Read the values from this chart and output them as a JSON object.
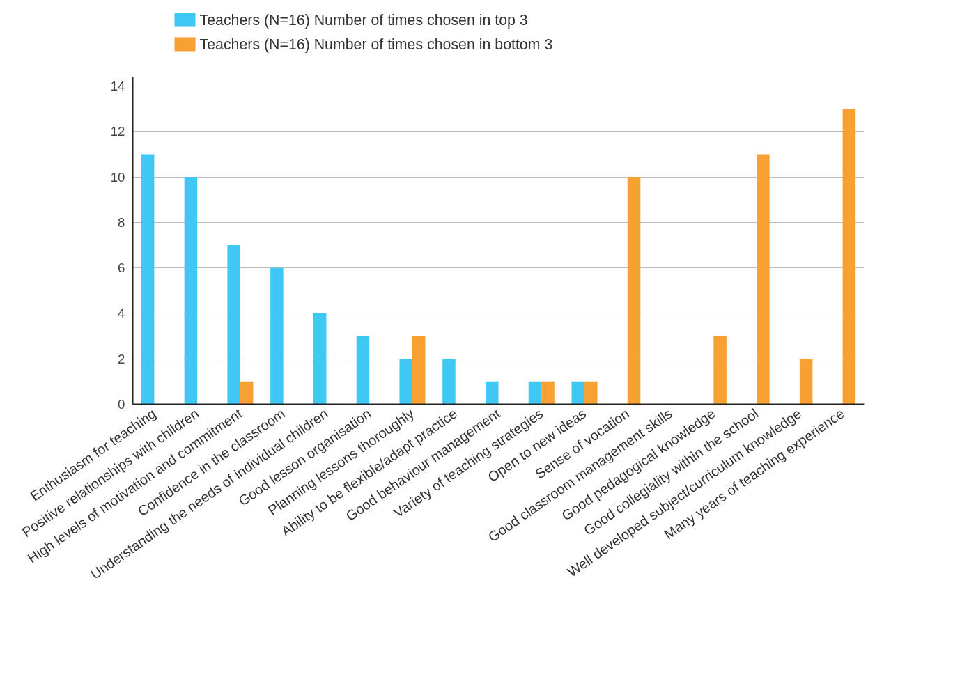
{
  "chart_data": {
    "type": "bar",
    "categories": [
      "Enthusiasm for teaching",
      "Positive relationships with children",
      "High levels of motivation and commitment",
      "Confidence in the classroom",
      "Understanding the needs of individual children",
      "Good lesson organisation",
      "Planning lessons thoroughly",
      "Ability to be flexible/adapt practice",
      "Good behaviour management",
      "Variety of teaching strategies",
      "Open to new ideas",
      "Sense of vocation",
      "Good classroom management skills",
      "Good pedagogical knowledge",
      "Good collegiality within the school",
      "Well developed subject/curriculum knowledge",
      "Many years of teaching experience"
    ],
    "series": [
      {
        "name": "Teachers (N=16) Number of times chosen in top 3",
        "color": "#40c8f4",
        "values": [
          11,
          10,
          7,
          6,
          4,
          3,
          2,
          2,
          1,
          1,
          1,
          0,
          0,
          0,
          0,
          0,
          0
        ]
      },
      {
        "name": "Teachers (N=16) Number of times chosen in bottom 3",
        "color": "#f8a032",
        "values": [
          0,
          0,
          1,
          0,
          0,
          0,
          3,
          0,
          0,
          1,
          1,
          10,
          0,
          3,
          11,
          2,
          13
        ]
      }
    ],
    "ylim": [
      0,
      14.4
    ],
    "yticks": [
      0,
      2,
      4,
      6,
      8,
      10,
      12,
      14
    ],
    "grid": "y",
    "legend": "top left"
  }
}
